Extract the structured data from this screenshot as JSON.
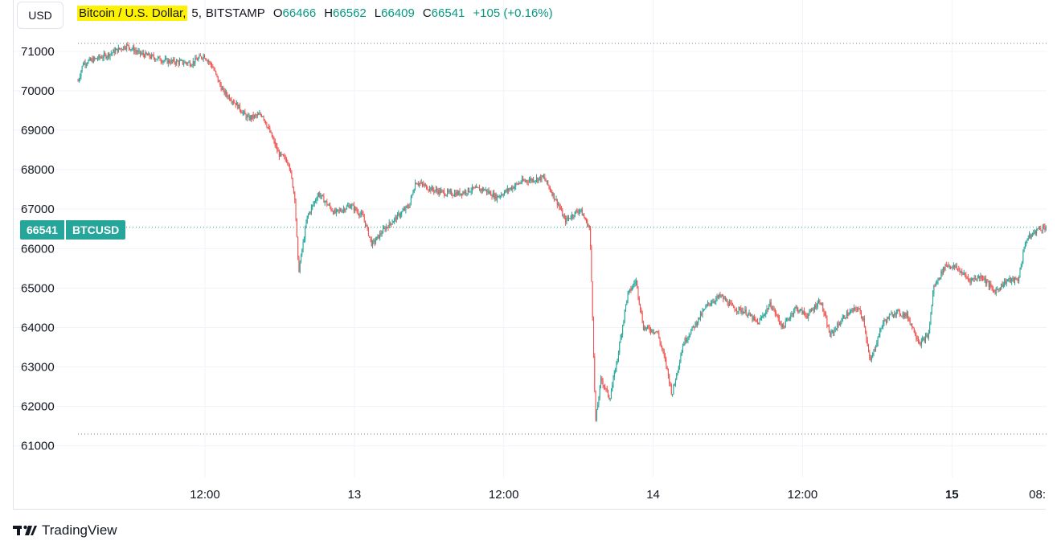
{
  "currency_button": "USD",
  "legend": {
    "symbol_name": "Bitcoin / U.S. Dollar,",
    "interval": "5,",
    "exchange": "BITSTAMP",
    "open_label": "O",
    "open": "66466",
    "high_label": "H",
    "high": "66562",
    "low_label": "L",
    "low": "66409",
    "close_label": "C",
    "close": "66541",
    "change": "+105 (+0.16%)"
  },
  "price_tag": {
    "price": "66541",
    "symbol": "BTCUSD"
  },
  "brand": "TradingView",
  "colors": {
    "up": "#26a69a",
    "down": "#ef5350",
    "grid": "#f0f3fa",
    "highlight": "#fff200"
  },
  "chart_data": {
    "type": "candlestick",
    "interval_minutes": 5,
    "y_ticks": [
      71000,
      70000,
      69000,
      68000,
      67000,
      66000,
      65000,
      64000,
      63000,
      62000,
      61000
    ],
    "ylim": [
      60200,
      72300
    ],
    "x_ticks": [
      {
        "label": "12:00",
        "t": 12,
        "bold": false
      },
      {
        "label": "13",
        "t": 24,
        "bold": false
      },
      {
        "label": "12:00",
        "t": 36,
        "bold": false
      },
      {
        "label": "14",
        "t": 48,
        "bold": false
      },
      {
        "label": "12:00",
        "t": 60,
        "bold": false
      },
      {
        "label": "15",
        "t": 72,
        "bold": true
      },
      {
        "label": "08:",
        "t": 80,
        "bold": false
      }
    ],
    "high_marker": 71200,
    "low_marker": 61300,
    "last_price": 66541,
    "grid": true,
    "price_path": [
      [
        1.9,
        70250
      ],
      [
        2.3,
        70700
      ],
      [
        4.2,
        70900
      ],
      [
        5.8,
        71150
      ],
      [
        6.8,
        70950
      ],
      [
        9.0,
        70750
      ],
      [
        11.0,
        70700
      ],
      [
        12.0,
        70900
      ],
      [
        12.7,
        70600
      ],
      [
        13.5,
        70000
      ],
      [
        14.5,
        69700
      ],
      [
        15.5,
        69300
      ],
      [
        16.7,
        69400
      ],
      [
        17.5,
        68800
      ],
      [
        18.0,
        68400
      ],
      [
        18.8,
        68200
      ],
      [
        19.3,
        67300
      ],
      [
        19.6,
        65400
      ],
      [
        20.3,
        66800
      ],
      [
        21.2,
        67400
      ],
      [
        22.5,
        66900
      ],
      [
        23.8,
        67100
      ],
      [
        24.8,
        66800
      ],
      [
        25.5,
        66100
      ],
      [
        26.5,
        66500
      ],
      [
        27.5,
        66800
      ],
      [
        28.5,
        67100
      ],
      [
        29.0,
        67700
      ],
      [
        30.3,
        67500
      ],
      [
        31.5,
        67400
      ],
      [
        32.5,
        67400
      ],
      [
        33.5,
        67500
      ],
      [
        34.5,
        67500
      ],
      [
        35.5,
        67300
      ],
      [
        36.5,
        67500
      ],
      [
        37.5,
        67700
      ],
      [
        39.3,
        67800
      ],
      [
        40.5,
        67100
      ],
      [
        41.0,
        66700
      ],
      [
        42.2,
        67000
      ],
      [
        43.0,
        66500
      ],
      [
        43.2,
        64500
      ],
      [
        43.45,
        61600
      ],
      [
        43.9,
        62700
      ],
      [
        44.6,
        62200
      ],
      [
        45.2,
        63200
      ],
      [
        46.0,
        64800
      ],
      [
        46.7,
        65200
      ],
      [
        47.3,
        64000
      ],
      [
        48.4,
        63900
      ],
      [
        49.1,
        63100
      ],
      [
        49.6,
        62300
      ],
      [
        50.5,
        63600
      ],
      [
        51.5,
        64100
      ],
      [
        52.5,
        64600
      ],
      [
        53.5,
        64800
      ],
      [
        54.5,
        64500
      ],
      [
        55.5,
        64400
      ],
      [
        56.5,
        64100
      ],
      [
        57.5,
        64600
      ],
      [
        58.5,
        64000
      ],
      [
        59.5,
        64500
      ],
      [
        60.5,
        64300
      ],
      [
        61.5,
        64700
      ],
      [
        62.3,
        63800
      ],
      [
        63.5,
        64300
      ],
      [
        64.5,
        64500
      ],
      [
        65.0,
        64200
      ],
      [
        65.5,
        63100
      ],
      [
        66.5,
        64100
      ],
      [
        67.5,
        64400
      ],
      [
        68.5,
        64300
      ],
      [
        69.5,
        63600
      ],
      [
        70.2,
        63800
      ],
      [
        70.6,
        65000
      ],
      [
        71.6,
        65600
      ],
      [
        72.5,
        65500
      ],
      [
        73.5,
        65200
      ],
      [
        74.5,
        65300
      ],
      [
        75.5,
        64900
      ],
      [
        76.5,
        65200
      ],
      [
        77.4,
        65200
      ],
      [
        78.0,
        66200
      ],
      [
        79.0,
        66500
      ],
      [
        79.5,
        66541
      ]
    ]
  }
}
